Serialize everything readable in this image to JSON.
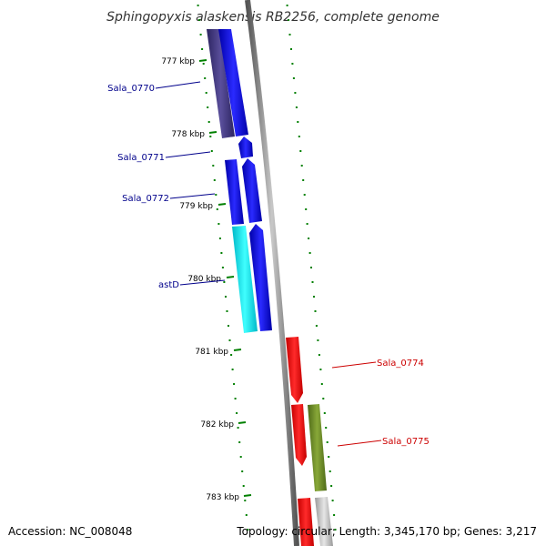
{
  "title": "Sphingopyxis alaskensis RB2256, complete genome",
  "footer": {
    "accession": "Accession: NC_008048",
    "topology": "Topology: circular; Length: 3,345,170 bp; Genes: 3,217"
  },
  "kbp_labels": [
    "777 kbp",
    "778 kbp",
    "779 kbp",
    "780 kbp",
    "781 kbp",
    "782 kbp",
    "783 kbp"
  ],
  "genes": [
    {
      "id": "Sala_0770",
      "label": "Sala_0770",
      "strand": "forward",
      "color": "#0000ff",
      "cog_color": "#483d8b"
    },
    {
      "id": "Sala_0771",
      "label": "Sala_0771",
      "strand": "forward",
      "color": "#0000ff"
    },
    {
      "id": "Sala_0772",
      "label": "Sala_0772",
      "strand": "forward",
      "color": "#0000ff",
      "cog_color": "#0000ff"
    },
    {
      "id": "astD",
      "label": "astD",
      "strand": "forward",
      "color": "#0000ff",
      "cog_color": "#00ffff"
    },
    {
      "id": "Sala_0774",
      "label": "Sala_0774",
      "strand": "reverse",
      "color": "#ff0000"
    },
    {
      "id": "Sala_0775",
      "label": "Sala_0775",
      "strand": "reverse",
      "color": "#ff0000",
      "cog_color": "#6b8e23"
    }
  ],
  "colors": {
    "backbone": "#808080",
    "tick": "#008000",
    "forward_label": "#00008b",
    "reverse_label": "#cc0000",
    "grey_feature": "#c0c0c0"
  }
}
